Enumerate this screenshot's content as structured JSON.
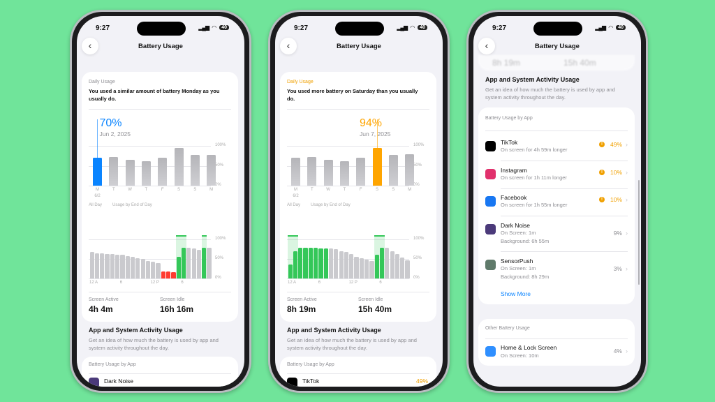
{
  "colors": {
    "background": "#70e49a",
    "accent_blue": "#0a84ff",
    "accent_orange": "#ffa500",
    "charging_green": "#34c759",
    "low_red": "#ff3b30",
    "bar_gray": "#c8c8cc"
  },
  "status_bar": {
    "time": "9:27",
    "battery": "40"
  },
  "nav": {
    "title": "Battery Usage",
    "back_icon": "chevron-left-icon"
  },
  "daily_axis": {
    "days": [
      "M",
      "T",
      "W",
      "T",
      "F",
      "S",
      "S",
      "M"
    ],
    "first_date": "6/2",
    "ticks": [
      "100%",
      "50%",
      "0%"
    ]
  },
  "hourly_axis": {
    "labels": [
      "12 A",
      "6",
      "12 P",
      "6"
    ],
    "ticks": [
      "100%",
      "50%",
      "0%"
    ]
  },
  "legend": {
    "all_day": "All Day",
    "end_of_day": "Usage by End of Day"
  },
  "labels": {
    "screen_active": "Screen Active",
    "screen_idle": "Screen Idle",
    "daily_usage": "Daily Usage",
    "section_title": "App and System Activity Usage",
    "section_desc": "Get an idea of how much the battery is used by app and system activity throughout the day.",
    "by_app": "Battery Usage by App",
    "other": "Other Battery Usage",
    "show_more": "Show More"
  },
  "phones": [
    {
      "headline": "You used a similar amount of battery Monday as you usually do.",
      "selected_value": "70%",
      "selected_date": "Jun 2, 2025",
      "selected_index": 0,
      "highlight_color": "#0a84ff",
      "caption_color": "#8e8e93",
      "daily": [
        70,
        72,
        65,
        61,
        70,
        94,
        77,
        78
      ],
      "hourly": [
        68,
        65,
        64,
        63,
        62,
        61,
        60,
        58,
        55,
        52,
        50,
        45,
        42,
        40,
        18,
        17,
        16,
        55,
        78,
        78,
        76,
        74,
        78,
        78
      ],
      "hourly_state": [
        "g",
        "g",
        "g",
        "g",
        "g",
        "g",
        "g",
        "g",
        "g",
        "g",
        "g",
        "g",
        "g",
        "g",
        "r",
        "r",
        "r",
        "c",
        "c",
        "g",
        "g",
        "g",
        "c",
        "g"
      ],
      "charging_highlight": [
        17,
        18,
        22
      ],
      "screen_active": "4h 4m",
      "screen_idle": "16h 16m",
      "first_app": "Dark Noise"
    },
    {
      "headline": "You used more battery on Saturday than you usually do.",
      "selected_value": "94%",
      "selected_date": "Jun 7, 2025",
      "selected_index": 5,
      "highlight_color": "#ffa500",
      "caption_color": "#f0a000",
      "daily": [
        70,
        72,
        65,
        61,
        70,
        94,
        77,
        79
      ],
      "hourly": [
        35,
        70,
        78,
        78,
        78,
        78,
        77,
        77,
        76,
        75,
        70,
        67,
        62,
        55,
        52,
        48,
        44,
        60,
        78,
        78,
        70,
        62,
        54,
        46
      ],
      "hourly_state": [
        "c",
        "c",
        "c",
        "c",
        "c",
        "c",
        "c",
        "c",
        "g",
        "g",
        "g",
        "g",
        "g",
        "g",
        "g",
        "g",
        "g",
        "c",
        "c",
        "g",
        "g",
        "g",
        "g",
        "g"
      ],
      "charging_highlight": [
        0,
        1,
        17,
        18
      ],
      "screen_active": "8h 19m",
      "screen_idle": "15h 40m",
      "first_app": "TikTok",
      "first_app_pct": "49%"
    }
  ],
  "detail": {
    "blurred_values": [
      "8h 19m",
      "15h 40m"
    ],
    "apps": [
      {
        "name": "TikTok",
        "sub": [
          "On screen for 4h 59m longer"
        ],
        "pct": "49%",
        "warning": true,
        "icon": "tiktok-icon",
        "color": "#000000"
      },
      {
        "name": "Instagram",
        "sub": [
          "On screen for 1h 11m longer"
        ],
        "pct": "10%",
        "warning": true,
        "icon": "instagram-icon",
        "color": "#e1306c"
      },
      {
        "name": "Facebook",
        "sub": [
          "On screen for 1h 55m longer"
        ],
        "pct": "10%",
        "warning": true,
        "icon": "facebook-icon",
        "color": "#1877f2"
      },
      {
        "name": "Dark Noise",
        "sub": [
          "On Screen: 1m",
          "Background: 6h 55m"
        ],
        "pct": "9%",
        "warning": false,
        "icon": "dark-noise-icon",
        "color": "#4b3a7a"
      },
      {
        "name": "SensorPush",
        "sub": [
          "On Screen: 1m",
          "Background: 8h 29m"
        ],
        "pct": "3%",
        "warning": false,
        "icon": "sensorpush-icon",
        "color": "#5f7a6a"
      }
    ],
    "other": [
      {
        "name": "Home & Lock Screen",
        "sub": [
          "On Screen: 10m"
        ],
        "pct": "4%",
        "icon": "home-lock-screen-icon",
        "color": "#2f8fff"
      }
    ]
  }
}
